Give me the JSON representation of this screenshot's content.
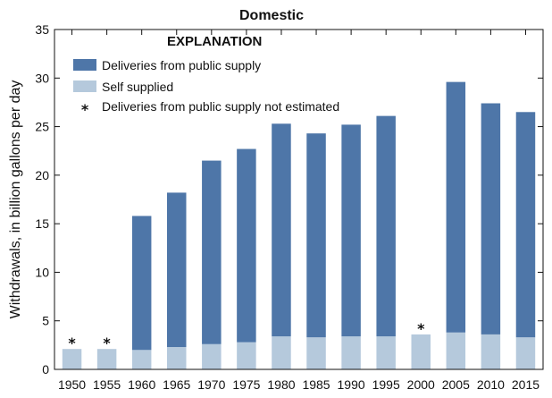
{
  "chart_data": {
    "type": "bar",
    "stacked": true,
    "title": "Domestic",
    "xlabel": "",
    "ylabel": "Withdrawals, in billion gallons per day",
    "ylim": [
      0,
      35
    ],
    "yticks": [
      "0",
      "5",
      "10",
      "15",
      "20",
      "25",
      "30",
      "35"
    ],
    "categories": [
      "1950",
      "1955",
      "1960",
      "1965",
      "1970",
      "1975",
      "1980",
      "1985",
      "1990",
      "1995",
      "2000",
      "2005",
      "2010",
      "2015"
    ],
    "series": [
      {
        "name": "Self supplied",
        "color": "#b5c9dc",
        "values": [
          2.1,
          2.1,
          2.0,
          2.3,
          2.6,
          2.8,
          3.4,
          3.3,
          3.4,
          3.4,
          3.6,
          3.8,
          3.6,
          3.3
        ]
      },
      {
        "name": "Deliveries from public supply",
        "color": "#4e76a8",
        "values": [
          0,
          0,
          13.8,
          15.9,
          18.9,
          19.9,
          21.9,
          21.0,
          21.8,
          22.7,
          0,
          25.8,
          23.8,
          23.2
        ]
      }
    ],
    "not_estimated": [
      "1950",
      "1955",
      "2000"
    ],
    "not_estimated_marker": "*",
    "legend": {
      "title": "EXPLANATION",
      "placement": "top-left",
      "items": [
        {
          "label": "Deliveries from public supply",
          "color": "#4e76a8",
          "kind": "swatch"
        },
        {
          "label": "Self supplied",
          "color": "#b5c9dc",
          "kind": "swatch"
        },
        {
          "label": "Deliveries from public supply not estimated",
          "kind": "marker",
          "marker": "*"
        }
      ]
    },
    "grid": false
  }
}
